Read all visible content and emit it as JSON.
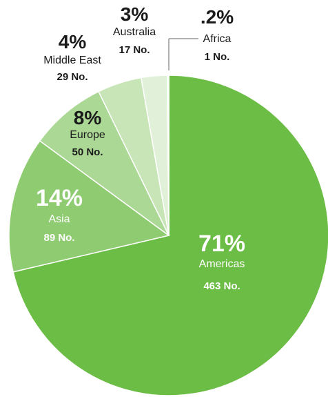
{
  "chart_data": {
    "type": "pie",
    "title": "",
    "slices": [
      {
        "label": "Americas",
        "percent_label": "71%",
        "count_label": "463 No.",
        "value": 463,
        "color": "#6cbd45"
      },
      {
        "label": "Asia",
        "percent_label": "14%",
        "count_label": "89 No.",
        "value": 89,
        "color": "#8fcb71"
      },
      {
        "label": "Europe",
        "percent_label": "8%",
        "count_label": "50 No.",
        "value": 50,
        "color": "#acd896"
      },
      {
        "label": "Middle East",
        "percent_label": "4%",
        "count_label": "29 No.",
        "value": 29,
        "color": "#c7e5b7"
      },
      {
        "label": "Australia",
        "percent_label": "3%",
        "count_label": "17 No.",
        "value": 17,
        "color": "#e1f0d9"
      },
      {
        "label": "Africa",
        "percent_label": ".2%",
        "count_label": "1 No.",
        "value": 1,
        "color": "#f1f8ec"
      }
    ],
    "label_color_dark": "#1a1a1a",
    "label_color_light": "#ffffff",
    "leader_line_color": "#666666"
  }
}
